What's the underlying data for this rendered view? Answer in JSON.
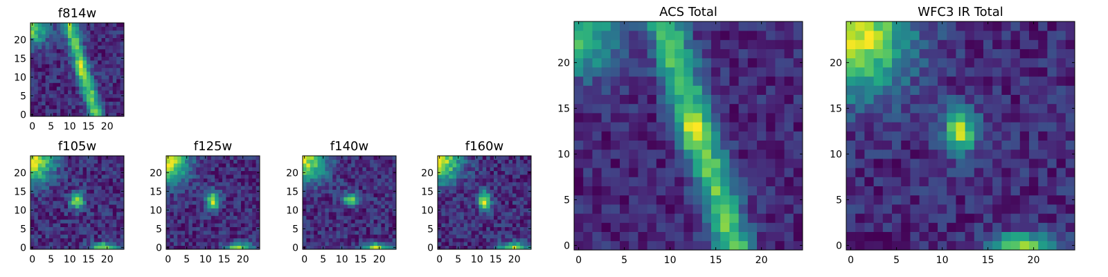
{
  "figure": {
    "background": "#ffffff",
    "colormap": "viridis"
  },
  "chart_data": [
    {
      "type": "heatmap",
      "id": "f814w",
      "title": "f814w",
      "grid_size": [
        25,
        25
      ],
      "xlim": [
        0,
        24
      ],
      "ylim": [
        0,
        24
      ],
      "x_ticks": [
        0,
        5,
        10,
        15,
        20
      ],
      "y_ticks": [
        0,
        5,
        10,
        15,
        20
      ],
      "features": [
        {
          "kind": "corner_glow",
          "cx": 0,
          "cy": 23,
          "sx": 3.0,
          "sy": 3.0,
          "amp": 0.75
        },
        {
          "kind": "diagonal_streak",
          "x_at_y0": 17,
          "x_at_y24": 10,
          "width": 1.4,
          "amp": 0.75
        },
        {
          "kind": "compact_source",
          "cx": 13,
          "cy": 12,
          "sx": 1.0,
          "sy": 1.5,
          "amp": 0.25
        }
      ],
      "noise": 0.3,
      "seed": 11
    },
    {
      "type": "heatmap",
      "id": "f105w",
      "title": "f105w",
      "grid_size": [
        25,
        25
      ],
      "xlim": [
        0,
        24
      ],
      "ylim": [
        0,
        24
      ],
      "x_ticks": [
        0,
        5,
        10,
        15,
        20
      ],
      "y_ticks": [
        0,
        5,
        10,
        15,
        20
      ],
      "features": [
        {
          "kind": "corner_glow",
          "cx": 0,
          "cy": 23,
          "sx": 4.0,
          "sy": 4.0,
          "amp": 0.8
        },
        {
          "kind": "compact_source",
          "cx": 12,
          "cy": 12.5,
          "sx": 1.3,
          "sy": 1.6,
          "amp": 0.75
        },
        {
          "kind": "compact_source",
          "cx": 19,
          "cy": 0,
          "sx": 2.4,
          "sy": 0.9,
          "amp": 0.75
        }
      ],
      "noise": 0.28,
      "seed": 23
    },
    {
      "type": "heatmap",
      "id": "f125w",
      "title": "f125w",
      "grid_size": [
        25,
        25
      ],
      "xlim": [
        0,
        24
      ],
      "ylim": [
        0,
        24
      ],
      "x_ticks": [
        0,
        5,
        10,
        15,
        20
      ],
      "y_ticks": [
        0,
        5,
        10,
        15,
        20
      ],
      "features": [
        {
          "kind": "corner_glow",
          "cx": 0,
          "cy": 23,
          "sx": 4.0,
          "sy": 4.0,
          "amp": 0.85
        },
        {
          "kind": "compact_source",
          "cx": 12,
          "cy": 12.5,
          "sx": 1.3,
          "sy": 1.8,
          "amp": 0.8
        },
        {
          "kind": "compact_source",
          "cx": 19,
          "cy": 0,
          "sx": 2.4,
          "sy": 0.9,
          "amp": 0.8
        }
      ],
      "noise": 0.28,
      "seed": 37
    },
    {
      "type": "heatmap",
      "id": "f140w",
      "title": "f140w",
      "grid_size": [
        25,
        25
      ],
      "xlim": [
        0,
        24
      ],
      "ylim": [
        0,
        24
      ],
      "x_ticks": [
        0,
        5,
        10,
        15,
        20
      ],
      "y_ticks": [
        0,
        5,
        10,
        15,
        20
      ],
      "features": [
        {
          "kind": "corner_glow",
          "cx": 0,
          "cy": 23,
          "sx": 4.0,
          "sy": 4.0,
          "amp": 0.85
        },
        {
          "kind": "compact_source",
          "cx": 12.5,
          "cy": 13,
          "sx": 1.5,
          "sy": 1.1,
          "amp": 0.8
        },
        {
          "kind": "compact_source",
          "cx": 19,
          "cy": 0,
          "sx": 2.6,
          "sy": 0.9,
          "amp": 0.8
        }
      ],
      "noise": 0.3,
      "seed": 51
    },
    {
      "type": "heatmap",
      "id": "f160w",
      "title": "f160w",
      "grid_size": [
        25,
        25
      ],
      "xlim": [
        0,
        24
      ],
      "ylim": [
        0,
        24
      ],
      "x_ticks": [
        0,
        5,
        10,
        15,
        20
      ],
      "y_ticks": [
        0,
        5,
        10,
        15,
        20
      ],
      "features": [
        {
          "kind": "corner_glow",
          "cx": 0,
          "cy": 23,
          "sx": 4.0,
          "sy": 4.0,
          "amp": 0.85
        },
        {
          "kind": "compact_source",
          "cx": 12,
          "cy": 12.5,
          "sx": 1.2,
          "sy": 1.8,
          "amp": 0.85
        },
        {
          "kind": "compact_source",
          "cx": 20,
          "cy": 0,
          "sx": 2.8,
          "sy": 1.0,
          "amp": 0.8
        }
      ],
      "noise": 0.3,
      "seed": 67
    },
    {
      "type": "heatmap",
      "id": "acs-total",
      "title": "ACS Total",
      "grid_size": [
        25,
        25
      ],
      "xlim": [
        0,
        24
      ],
      "ylim": [
        0,
        24
      ],
      "x_ticks": [
        0,
        5,
        10,
        15,
        20
      ],
      "y_ticks": [
        0,
        5,
        10,
        15,
        20
      ],
      "features": [
        {
          "kind": "corner_glow",
          "cx": 0,
          "cy": 23,
          "sx": 3.2,
          "sy": 3.2,
          "amp": 0.7
        },
        {
          "kind": "diagonal_streak",
          "x_at_y0": 17,
          "x_at_y24": 9.5,
          "width": 1.5,
          "amp": 0.75
        },
        {
          "kind": "compact_source",
          "cx": 12.5,
          "cy": 12.5,
          "sx": 1.2,
          "sy": 1.4,
          "amp": 0.35
        }
      ],
      "noise": 0.28,
      "seed": 89
    },
    {
      "type": "heatmap",
      "id": "wfc3-ir-total",
      "title": "WFC3 IR Total",
      "grid_size": [
        25,
        25
      ],
      "xlim": [
        0,
        24
      ],
      "ylim": [
        0,
        24
      ],
      "x_ticks": [
        0,
        5,
        10,
        15,
        20
      ],
      "y_ticks": [
        0,
        5,
        10,
        15,
        20
      ],
      "features": [
        {
          "kind": "corner_glow",
          "cx": 0,
          "cy": 23,
          "sx": 4.5,
          "sy": 4.5,
          "amp": 0.85
        },
        {
          "kind": "compact_source",
          "cx": 12,
          "cy": 12.5,
          "sx": 1.3,
          "sy": 1.8,
          "amp": 0.75
        },
        {
          "kind": "compact_source",
          "cx": 19,
          "cy": 0,
          "sx": 2.6,
          "sy": 1.0,
          "amp": 0.7
        }
      ],
      "noise": 0.25,
      "seed": 97
    }
  ]
}
